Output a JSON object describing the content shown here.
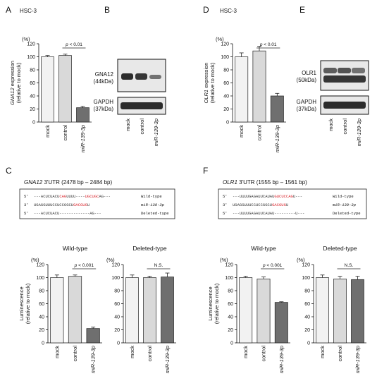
{
  "colors": {
    "mock": "#f2f2f2",
    "control": "#d9d9d9",
    "mir": "#6f6f6f",
    "red": "#d9232a",
    "blot_bg": "#e8e8e8",
    "band": "#222222",
    "axis": "#111111"
  },
  "panels": {
    "A": {
      "letter": "A",
      "title": "HSC-3"
    },
    "B": {
      "letter": "B",
      "gna12_label": [
        "GNA12",
        "(44kDa)"
      ],
      "gapdh_label": [
        "GAPDH",
        "(37kDa)"
      ],
      "lanes": [
        "mock",
        "control",
        "miR-139-3p"
      ]
    },
    "C": {
      "letter": "C",
      "utr_gene": "GNA12",
      "utr_range": " 3'UTR (2478 bp – 2484 bp)",
      "seq_rows": [
        {
          "prefix": "5'",
          "parts": [
            [
              "---ACUCUACU",
              "k"
            ],
            [
              "CAG",
              "r"
            ],
            [
              "UUUU----",
              "k"
            ],
            [
              "UGCUGC",
              "r"
            ],
            [
              "AG---",
              "k"
            ]
          ],
          "label": "Wild-type"
        },
        {
          "prefix": "3'",
          "parts": [
            [
              "UGAGGUUUCCUCCGGCU",
              "k"
            ],
            [
              "GACGUG",
              "r"
            ],
            [
              "U",
              "k"
            ]
          ],
          "label": "miR-139-3p"
        },
        {
          "prefix": "5'",
          "parts": [
            [
              "---ACUCUACU-------------AG---",
              "k"
            ]
          ],
          "label": "Deleted-type"
        }
      ]
    },
    "D": {
      "letter": "D",
      "title": "HSC-3"
    },
    "E": {
      "letter": "E",
      "olr1_label": [
        "OLR1",
        "(50kDa)"
      ],
      "gapdh_label": [
        "GAPDH",
        "(37kDa)"
      ],
      "lanes": [
        "mock",
        "control",
        "miR-139-3p"
      ]
    },
    "F": {
      "letter": "F",
      "utr_gene": "OLR1",
      "utr_range": " 3'UTR (1555 bp – 1561 bp)",
      "seq_rows": [
        {
          "prefix": "5'",
          "parts": [
            [
              "---UUUUGAGAUUCAUAU",
              "k"
            ],
            [
              "GUCUCCAG",
              "r"
            ],
            [
              "U---",
              "k"
            ]
          ],
          "label": "Wild-type"
        },
        {
          "prefix": "3'",
          "parts": [
            [
              "UGAGGUUUCCUCCGGCU",
              "k"
            ],
            [
              "GACGUG",
              "r"
            ],
            [
              "U",
              "k"
            ]
          ],
          "label": "miR-139-3p"
        },
        {
          "prefix": "5'",
          "parts": [
            [
              "---UUUUGAGAUUCAUAU---------U---",
              "k"
            ]
          ],
          "label": "Deleted-type"
        }
      ]
    }
  },
  "chart_data": [
    {
      "id": "A",
      "type": "bar",
      "categories": [
        "mock",
        "control",
        "miR-139-3p"
      ],
      "values": [
        100,
        102,
        22
      ],
      "errors": [
        2,
        2,
        2
      ],
      "ylabel": [
        "GNA12 expression",
        "(relative to mock)"
      ],
      "ylabel_italic": "GNA12",
      "unit": "(%)",
      "ylim": [
        0,
        120
      ],
      "yticks": [
        0,
        20,
        40,
        60,
        80,
        100,
        120
      ],
      "sig": "p < 0.01",
      "subtitle": ""
    },
    {
      "id": "C1",
      "type": "bar",
      "categories": [
        "mock",
        "control",
        "miR-139-3p"
      ],
      "values": [
        100,
        102,
        22
      ],
      "errors": [
        4,
        2,
        2
      ],
      "ylabel": [
        "Luminescence",
        "(relative to mock)"
      ],
      "unit": "(%)",
      "ylim": [
        0,
        120
      ],
      "yticks": [
        0,
        20,
        40,
        60,
        80,
        100,
        120
      ],
      "sig": "p < 0.001",
      "subtitle": "Wild-type"
    },
    {
      "id": "C2",
      "type": "bar",
      "categories": [
        "mock",
        "control",
        "miR-139-3p"
      ],
      "values": [
        100,
        100,
        101
      ],
      "errors": [
        4,
        2,
        6
      ],
      "ylabel": [],
      "unit": "(%)",
      "ylim": [
        0,
        120
      ],
      "yticks": [
        0,
        20,
        40,
        60,
        80,
        100,
        120
      ],
      "sig": "N.S.",
      "subtitle": "Deleted-type"
    },
    {
      "id": "D",
      "type": "bar",
      "categories": [
        "mock",
        "control",
        "miR-139-3p"
      ],
      "values": [
        100,
        109,
        40
      ],
      "errors": [
        6,
        7,
        4
      ],
      "ylabel": [
        "OLR1 expression",
        "(relative to mock)"
      ],
      "ylabel_italic": "OLR1",
      "unit": "(%)",
      "ylim": [
        0,
        120
      ],
      "yticks": [
        0,
        20,
        40,
        60,
        80,
        100,
        120
      ],
      "sig": "p < 0.01",
      "subtitle": ""
    },
    {
      "id": "F1",
      "type": "bar",
      "categories": [
        "mock",
        "control",
        "miR-139-3p"
      ],
      "values": [
        100,
        98,
        62
      ],
      "errors": [
        2,
        3,
        1
      ],
      "ylabel": [
        "Luminescence",
        "(relative to mock)"
      ],
      "unit": "(%)",
      "ylim": [
        0,
        120
      ],
      "yticks": [
        0,
        20,
        40,
        60,
        80,
        100,
        120
      ],
      "sig": "p < 0.001",
      "subtitle": "Wild-type"
    },
    {
      "id": "F2",
      "type": "bar",
      "categories": [
        "mock",
        "control",
        "miR-139-3p"
      ],
      "values": [
        100,
        98,
        97
      ],
      "errors": [
        4,
        4,
        5
      ],
      "ylabel": [],
      "unit": "(%)",
      "ylim": [
        0,
        120
      ],
      "yticks": [
        0,
        20,
        40,
        60,
        80,
        100,
        120
      ],
      "sig": "N.S.",
      "subtitle": "Deleted-type"
    }
  ]
}
